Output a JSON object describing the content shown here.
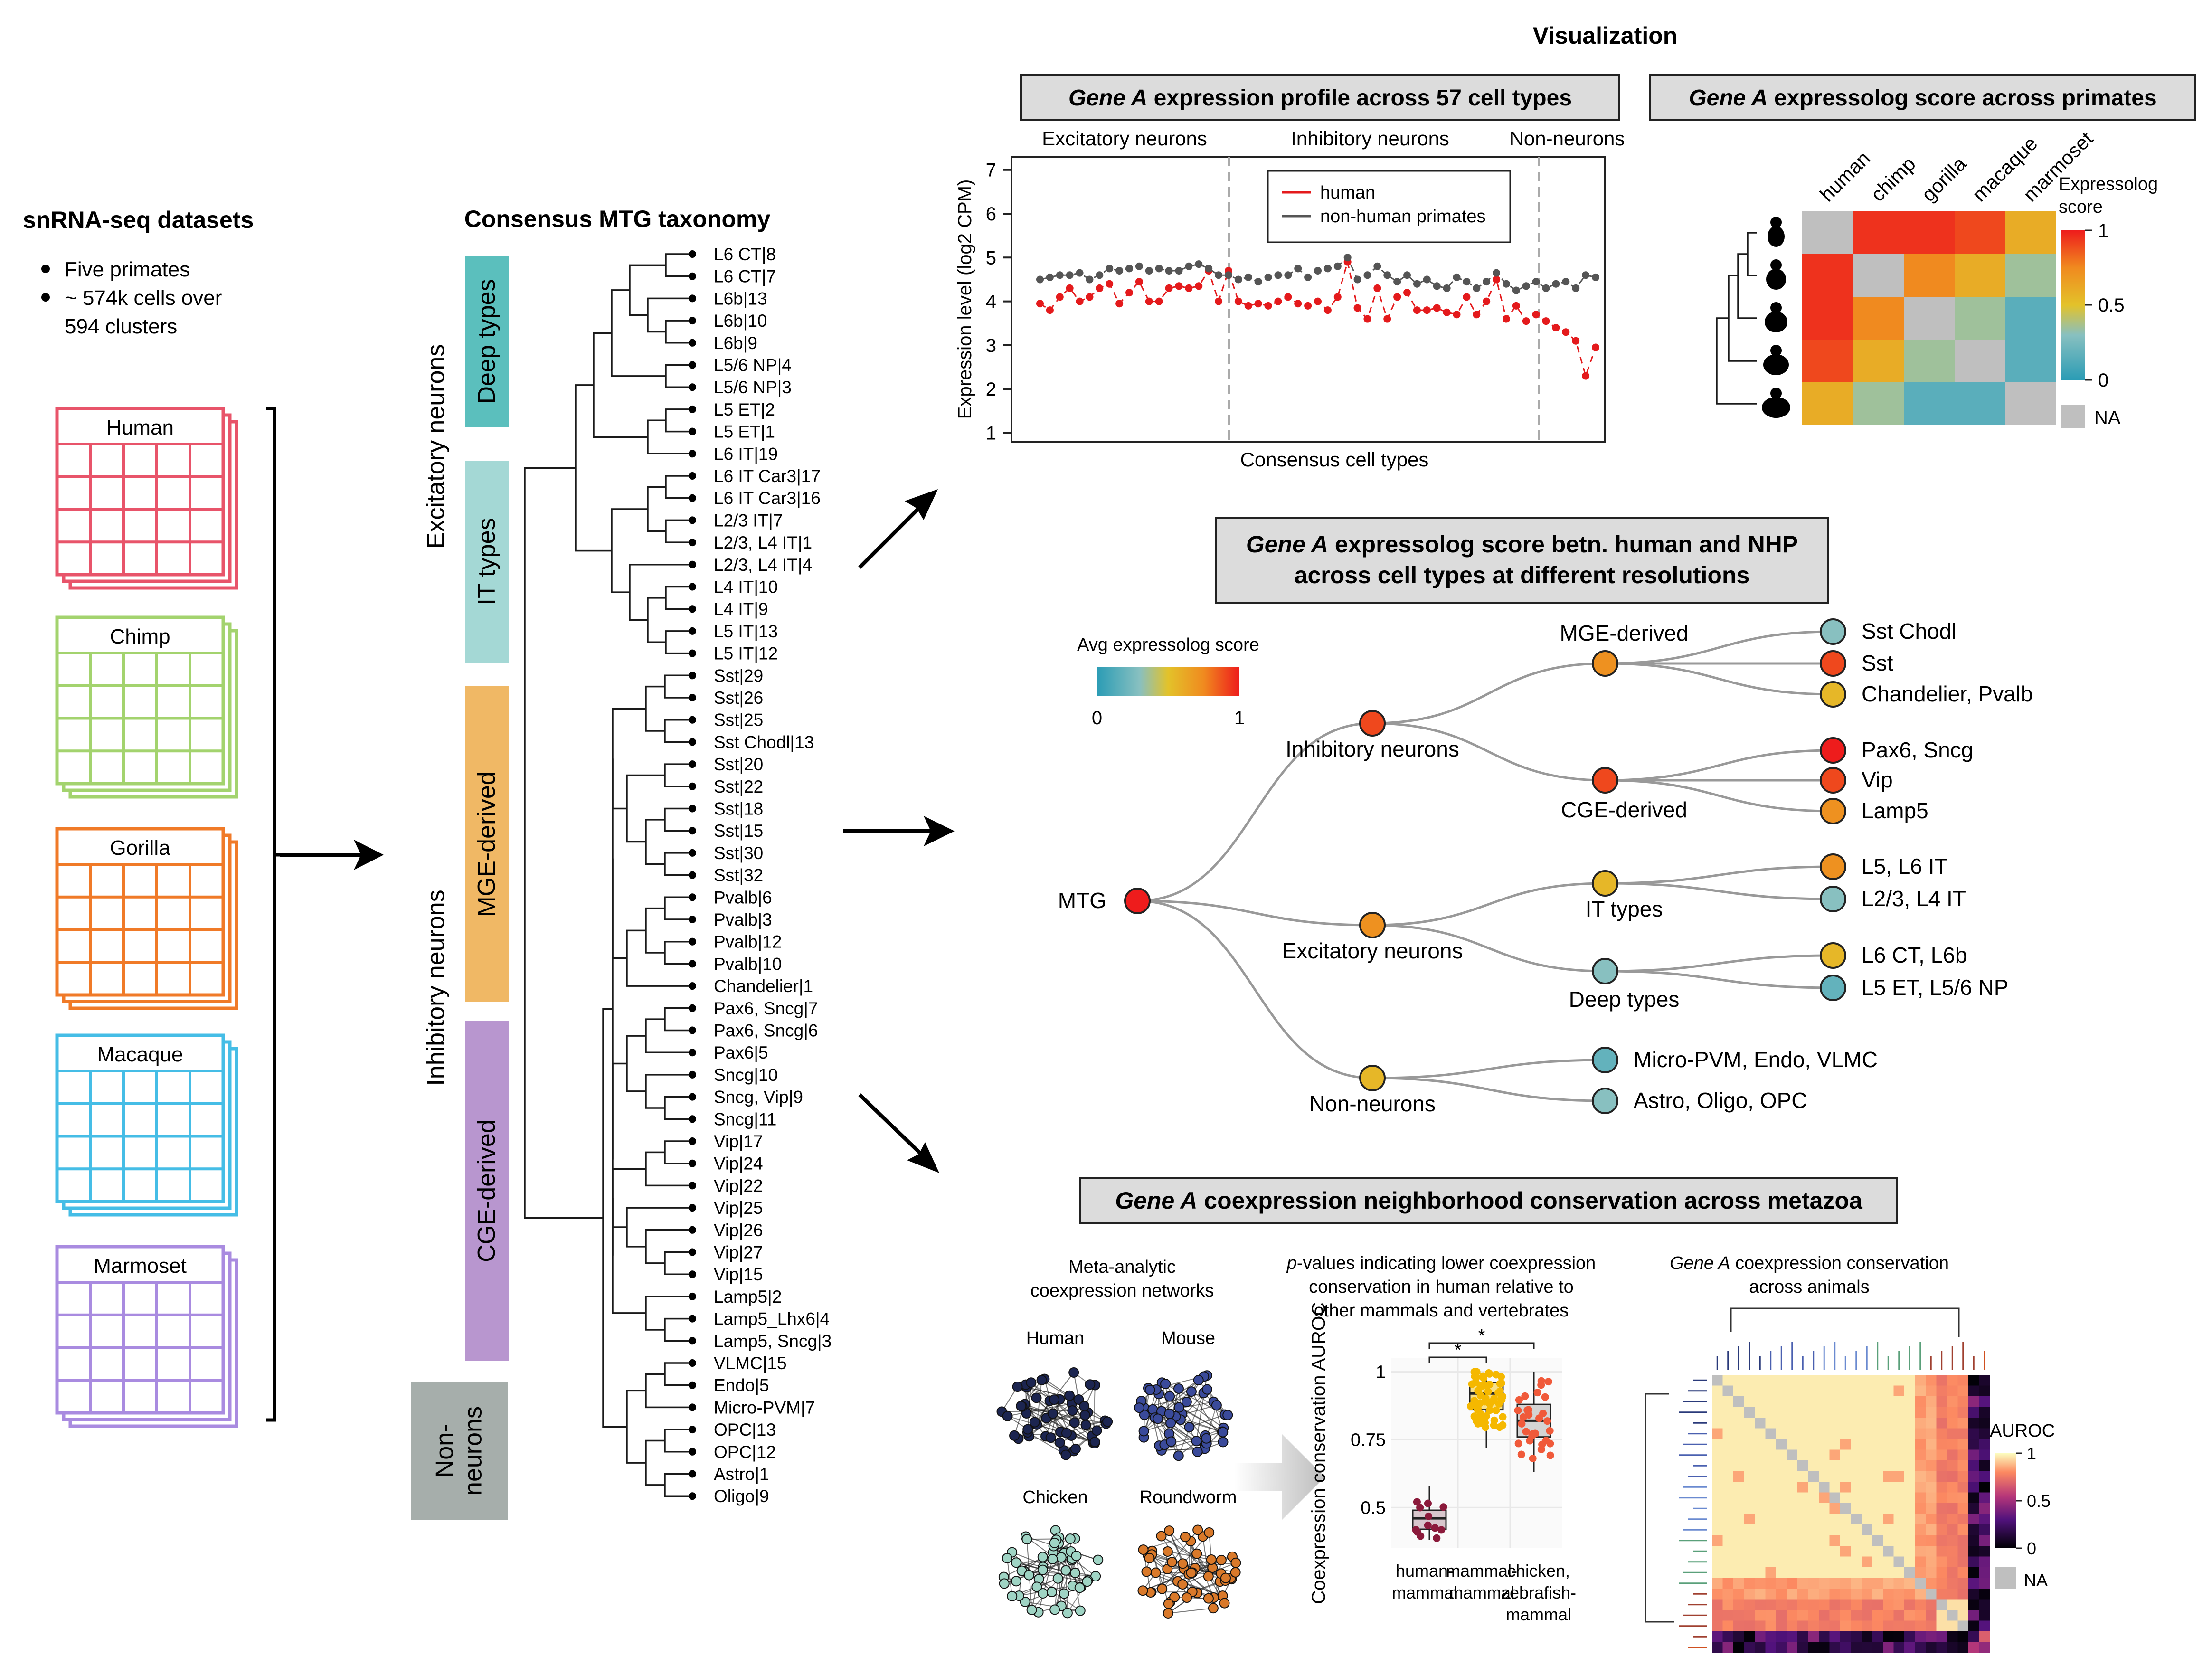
{
  "visualization_title": "Visualization",
  "datasets": {
    "title": "snRNA-seq datasets",
    "bullets": [
      "Five primates",
      "~ 574k cells over",
      "594 clusters"
    ],
    "species": [
      {
        "name": "Human",
        "color": "#e8546a"
      },
      {
        "name": "Chimp",
        "color": "#a3d36e"
      },
      {
        "name": "Gorilla",
        "color": "#f07a28"
      },
      {
        "name": "Macaque",
        "color": "#45bde6"
      },
      {
        "name": "Marmoset",
        "color": "#a98be0"
      }
    ]
  },
  "taxonomy": {
    "title": "Consensus MTG taxonomy",
    "class_labels": [
      "Excitatory neurons",
      "Inhibitory neurons"
    ],
    "groups": [
      {
        "label": "Deep types",
        "color": "#5bbfbd"
      },
      {
        "label": "IT types",
        "color": "#a4d8d5"
      },
      {
        "label": "MGE-derived",
        "color": "#f0b865"
      },
      {
        "label": "CGE-derived",
        "color": "#b896cf"
      },
      {
        "label": "Non-\nneurons",
        "color": "#a6aeab"
      }
    ],
    "leaves": [
      "L6 CT|8",
      "L6 CT|7",
      "L6b|13",
      "L6b|10",
      "L6b|9",
      "L5/6 NP|4",
      "L5/6 NP|3",
      "L5 ET|2",
      "L5 ET|1",
      "L6 IT|19",
      "L6 IT Car3|17",
      "L6 IT Car3|16",
      "L2/3 IT|7",
      "L2/3, L4 IT|1",
      "L2/3, L4 IT|4",
      "L4 IT|10",
      "L4 IT|9",
      "L5 IT|13",
      "L5 IT|12",
      "Sst|29",
      "Sst|26",
      "Sst|25",
      "Sst Chodl|13",
      "Sst|20",
      "Sst|22",
      "Sst|18",
      "Sst|15",
      "Sst|30",
      "Sst|32",
      "Pvalb|6",
      "Pvalb|3",
      "Pvalb|12",
      "Pvalb|10",
      "Chandelier|1",
      "Pax6, Sncg|7",
      "Pax6, Sncg|6",
      "Pax6|5",
      "Sncg|10",
      "Sncg, Vip|9",
      "Sncg|11",
      "Vip|17",
      "Vip|24",
      "Vip|22",
      "Vip|25",
      "Vip|26",
      "Vip|27",
      "Vip|15",
      "Lamp5|2",
      "Lamp5_Lhx6|4",
      "Lamp5, Sncg|3",
      "VLMC|15",
      "Endo|5",
      "Micro-PVM|7",
      "OPC|13",
      "OPC|12",
      "Astro|1",
      "Oligo|9"
    ]
  },
  "profile_panel": {
    "title_italic": "Gene A",
    "title_rest": " expression profile across 57 cell types",
    "sections": [
      "Excitatory neurons",
      "Inhibitory neurons",
      "Non-neurons"
    ],
    "xlabel": "Consensus cell types"
  },
  "chart_data": [
    {
      "type": "line",
      "ylabel": "Expression level (log2 CPM)",
      "xlabel": "Consensus cell types",
      "ylim": [
        0.8,
        7.3
      ],
      "yticks": [
        1,
        2,
        3,
        4,
        5,
        6,
        7
      ],
      "legend_position": "top-right",
      "series": [
        {
          "name": "human",
          "color": "#e41a1c",
          "values": [
            3.95,
            3.8,
            4.1,
            4.3,
            4.0,
            4.1,
            4.3,
            4.4,
            3.95,
            4.2,
            4.45,
            4.0,
            4.0,
            4.3,
            4.35,
            4.3,
            4.35,
            4.7,
            4.0,
            4.7,
            4.0,
            3.9,
            3.95,
            3.9,
            4.0,
            4.1,
            3.95,
            3.9,
            4.0,
            3.8,
            4.1,
            4.9,
            3.85,
            3.6,
            4.3,
            3.6,
            4.1,
            4.2,
            3.8,
            3.8,
            3.85,
            3.75,
            3.7,
            4.1,
            3.7,
            4.0,
            4.5,
            3.6,
            3.9,
            3.55,
            3.7,
            3.55,
            3.4,
            3.3,
            3.1,
            2.3,
            2.95
          ]
        },
        {
          "name": "non-human primates",
          "color": "#555555",
          "values": [
            4.5,
            4.55,
            4.6,
            4.6,
            4.65,
            4.5,
            4.6,
            4.75,
            4.7,
            4.75,
            4.8,
            4.7,
            4.75,
            4.7,
            4.7,
            4.8,
            4.85,
            4.75,
            4.6,
            4.6,
            4.5,
            4.55,
            4.45,
            4.55,
            4.6,
            4.6,
            4.75,
            4.55,
            4.7,
            4.75,
            4.8,
            5.0,
            4.5,
            4.6,
            4.8,
            4.6,
            4.45,
            4.6,
            4.4,
            4.5,
            4.35,
            4.3,
            4.55,
            4.45,
            4.3,
            4.45,
            4.65,
            4.4,
            4.25,
            4.35,
            4.45,
            4.3,
            4.4,
            4.45,
            4.3,
            4.6,
            4.55
          ]
        }
      ]
    },
    {
      "type": "heatmap",
      "title": "Gene A expressolog score across primates",
      "rows": [
        "human",
        "chimp",
        "gorilla",
        "macaque",
        "marmoset"
      ],
      "columns": [
        "human",
        "chimp",
        "gorilla",
        "macaque",
        "marmoset"
      ],
      "legend_title": "Expressolog score",
      "scale_ticks": [
        "1",
        "0.5",
        "0"
      ],
      "na_label": "NA",
      "values": [
        [
          null,
          0.95,
          0.95,
          0.9,
          0.6
        ],
        [
          0.95,
          null,
          0.75,
          0.6,
          0.35
        ],
        [
          0.95,
          0.75,
          null,
          0.35,
          0.15
        ],
        [
          0.9,
          0.6,
          0.35,
          null,
          0.15
        ],
        [
          0.6,
          0.35,
          0.15,
          0.15,
          null
        ]
      ]
    },
    {
      "type": "scatter",
      "title": "p-values indicating lower coexpression conservation in human relative to other mammals and vertebrates",
      "ylabel": "Coexpression conservation AUROC",
      "categories": [
        "human-\nmammal",
        "mammal-\nmammal",
        "chicken,\nzebrafish-\nmammal"
      ],
      "colors": [
        "#8b1a3b",
        "#f5b800",
        "#f05a3a"
      ],
      "yticks": [
        "1",
        "0.75",
        "0.5"
      ],
      "ylim": [
        0.35,
        1.05
      ],
      "medians": [
        0.46,
        0.92,
        0.82
      ],
      "q1": [
        0.42,
        0.86,
        0.76
      ],
      "q3": [
        0.49,
        0.96,
        0.88
      ],
      "whisker_low": [
        0.38,
        0.72,
        0.63
      ],
      "whisker_high": [
        0.58,
        1.0,
        1.0
      ],
      "significance": [
        "*",
        "*"
      ]
    },
    {
      "type": "heatmap",
      "title": "Gene A coexpression conservation across animals",
      "legend_title": "AUROC",
      "scale_ticks": [
        "1",
        "0.5",
        "0"
      ],
      "na_label": "NA"
    }
  ],
  "expressolog_panel": {
    "title_italic": "Gene A",
    "title_rest": " expressolog score across primates"
  },
  "resolution_panel": {
    "line1_italic": "Gene A",
    "line1_rest": " expressolog score betn. human and NHP",
    "line2": "across cell types at different resolutions",
    "scale_title": "Avg expressolog score",
    "scale_min": "0",
    "scale_max": "1",
    "nodes": [
      {
        "label": "MTG",
        "score": 1.0
      },
      {
        "label": "Inhibitory neurons",
        "score": 0.9
      },
      {
        "label": "Excitatory neurons",
        "score": 0.72
      },
      {
        "label": "Non-neurons",
        "score": 0.55
      },
      {
        "label": "MGE-derived",
        "score": 0.72
      },
      {
        "label": "CGE-derived",
        "score": 0.9
      },
      {
        "label": "IT types",
        "score": 0.55
      },
      {
        "label": "Deep types",
        "score": 0.3
      },
      {
        "label": "Sst Chodl",
        "score": 0.3
      },
      {
        "label": "Sst",
        "score": 0.9
      },
      {
        "label": "Chandelier, Pvalb",
        "score": 0.55
      },
      {
        "label": "Pax6, Sncg",
        "score": 1.0
      },
      {
        "label": "Vip",
        "score": 0.9
      },
      {
        "label": "Lamp5",
        "score": 0.72
      },
      {
        "label": "L5, L6 IT",
        "score": 0.72
      },
      {
        "label": "L2/3, L4 IT",
        "score": 0.3
      },
      {
        "label": "L6 CT, L6b",
        "score": 0.55
      },
      {
        "label": "L5 ET, L5/6 NP",
        "score": 0.18
      },
      {
        "label": "Micro-PVM, Endo, VLMC",
        "score": 0.18
      },
      {
        "label": "Astro, Oligo, OPC",
        "score": 0.3
      }
    ]
  },
  "coexp_panel": {
    "title_italic": "Gene A",
    "title_rest": " coexpression neighborhood conservation across metazoa",
    "networks_title": [
      "Meta-analytic",
      "coexpression networks"
    ],
    "networks": [
      {
        "name": "Human",
        "color": "#1c2550"
      },
      {
        "name": "Mouse",
        "color": "#3a4a9a"
      },
      {
        "name": "Chicken",
        "color": "#9fd4c4"
      },
      {
        "name": "Roundworm",
        "color": "#d9792a"
      }
    ],
    "pval_title_italic": "p",
    "pval_title_line1_rest": "-values indicating lower coexpression",
    "pval_title_line2": "conservation in human relative to",
    "pval_title_line3": "other mammals and vertebrates",
    "animals_title_italic": "Gene A",
    "animals_title_line1_rest": " coexpression conservation",
    "animals_title_line2": "across animals"
  }
}
